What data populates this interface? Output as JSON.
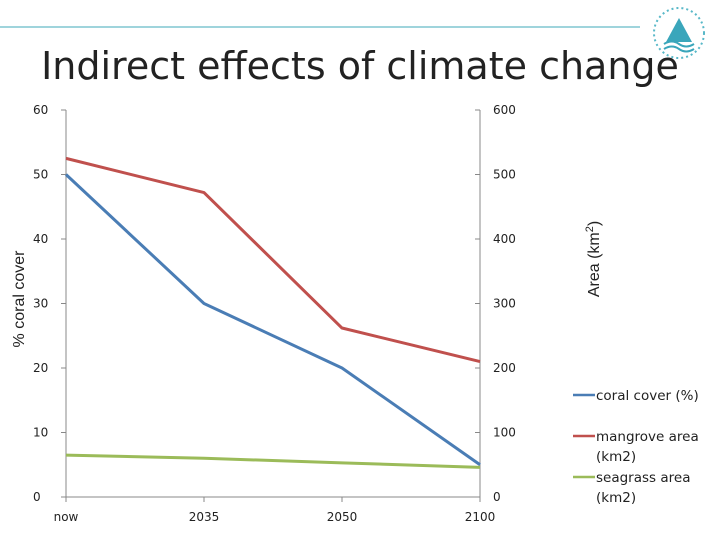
{
  "slide": {
    "title": "Indirect effects of climate change",
    "logo_icon": "wave-triangle-logo-icon"
  },
  "chart_data": {
    "type": "line",
    "title": "Indirect effects of climate change",
    "categories": [
      "now",
      "2035",
      "2050",
      "2100"
    ],
    "left_axis": {
      "label": "% coral cover",
      "ylim": [
        0,
        60
      ],
      "ticks": [
        "0",
        "10",
        "20",
        "30",
        "40",
        "50",
        "60"
      ]
    },
    "right_axis": {
      "label": "Area (km",
      "label_sup": "2",
      "label_end": ")",
      "ylim": [
        0,
        600
      ],
      "ticks": [
        "0",
        "100",
        "200",
        "300",
        "400",
        "500",
        "600"
      ]
    },
    "series": [
      {
        "name": "coral cover (%)",
        "axis": "left",
        "color": "#4a7db5",
        "values": [
          50,
          30,
          20,
          5
        ]
      },
      {
        "name": "mangrove area (km2)",
        "axis": "right",
        "color": "#c0504d",
        "values": [
          525,
          472,
          262,
          210
        ]
      },
      {
        "name": "seagrass area (km2)",
        "axis": "right",
        "color": "#9bbb59",
        "values": [
          65,
          60,
          53,
          46
        ]
      }
    ],
    "legend": {
      "placement": "right",
      "coral_label": "coral cover (%)",
      "mangrove_label_1": "mangrove area",
      "mangrove_label_2": "(km2)",
      "seagrass_label_1": "seagrass area",
      "seagrass_label_2": "(km2)"
    },
    "grid": false
  }
}
